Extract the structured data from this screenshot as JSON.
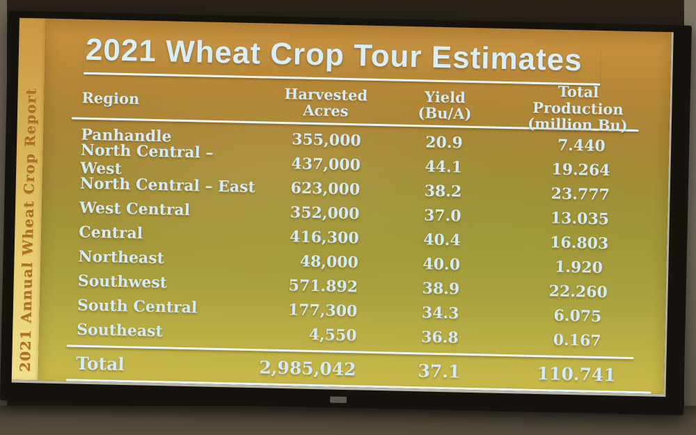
{
  "slide": {
    "title": "2021 Wheat Crop Tour Estimates",
    "sidebar_label": "2021 Annual Wheat Crop Report"
  },
  "table": {
    "columns": [
      {
        "label": "Region",
        "sublabel": ""
      },
      {
        "label": "Harvested Acres",
        "sublabel": ""
      },
      {
        "label": "Yield",
        "sublabel": "(Bu/A)"
      },
      {
        "label": "Total Production",
        "sublabel": "(million Bu)"
      }
    ],
    "rows": [
      {
        "region": "Panhandle",
        "acres": "355,000",
        "yield": "20.9",
        "production": "7.440"
      },
      {
        "region": "North Central – West",
        "acres": "437,000",
        "yield": "44.1",
        "production": "19.264"
      },
      {
        "region": "North Central – East",
        "acres": "623,000",
        "yield": "38.2",
        "production": "23.777"
      },
      {
        "region": "West Central",
        "acres": "352,000",
        "yield": "37.0",
        "production": "13.035"
      },
      {
        "region": "Central",
        "acres": "416,300",
        "yield": "40.4",
        "production": "16.803"
      },
      {
        "region": "Northeast",
        "acres": "48,000",
        "yield": "40.0",
        "production": "1.920"
      },
      {
        "region": "Southwest",
        "acres": "571.892",
        "yield": "38.9",
        "production": "22.260"
      },
      {
        "region": "South Central",
        "acres": "177,300",
        "yield": "34.3",
        "production": "6.075"
      },
      {
        "region": "Southeast",
        "acres": "4,550",
        "yield": "36.8",
        "production": "0.167"
      }
    ],
    "total": {
      "label": "Total",
      "acres": "2,985,042",
      "yield": "37.1",
      "production": "110.741"
    }
  },
  "chart_data": {
    "type": "table",
    "title": "2021 Wheat Crop Tour Estimates",
    "columns": [
      "Region",
      "Harvested Acres",
      "Yield (Bu/A)",
      "Total Production (million Bu)"
    ],
    "rows": [
      [
        "Panhandle",
        "355,000",
        "20.9",
        "7.440"
      ],
      [
        "North Central – West",
        "437,000",
        "44.1",
        "19.264"
      ],
      [
        "North Central – East",
        "623,000",
        "38.2",
        "23.777"
      ],
      [
        "West Central",
        "352,000",
        "37.0",
        "13.035"
      ],
      [
        "Central",
        "416,300",
        "40.4",
        "16.803"
      ],
      [
        "Northeast",
        "48,000",
        "40.0",
        "1.920"
      ],
      [
        "Southwest",
        "571.892",
        "38.9",
        "22.260"
      ],
      [
        "South Central",
        "177,300",
        "34.3",
        "6.075"
      ],
      [
        "Southeast",
        "4,550",
        "36.8",
        "0.167"
      ],
      [
        "Total",
        "2,985,042",
        "37.1",
        "110.741"
      ]
    ]
  },
  "colors": {
    "slide_gradient_top": "#c8923f",
    "slide_gradient_middle": "#a39538",
    "slide_gradient_bottom": "#c9ba4a",
    "text": "#d4eaf4",
    "rule": "#eaf5f9",
    "sidebar_strip": "#e7cd72",
    "sidebar_text": "#ae701f",
    "bezel": "#16120d"
  }
}
